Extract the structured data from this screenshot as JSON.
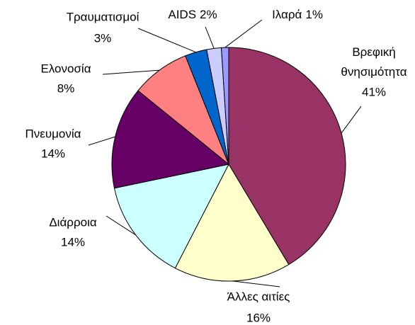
{
  "chart_data": {
    "type": "pie",
    "categories": [
      "Βρεφική θνησιμότητα",
      "Άλλες αιτίες",
      "Διάρροια",
      "Πνευμονία",
      "Ελονοσία",
      "Τραυματισμοί",
      "AIDS",
      "Ιλαρά"
    ],
    "values": [
      41,
      16,
      14,
      14,
      8,
      3,
      2,
      1
    ],
    "value_labels": [
      "41%",
      "16%",
      "14%",
      "14%",
      "8%",
      "3%",
      "2%",
      "1%"
    ],
    "colors": [
      "#993366",
      "#ffffcc",
      "#ccffff",
      "#660066",
      "#ff8080",
      "#0066cc",
      "#ccccff",
      "#9999ff"
    ]
  }
}
